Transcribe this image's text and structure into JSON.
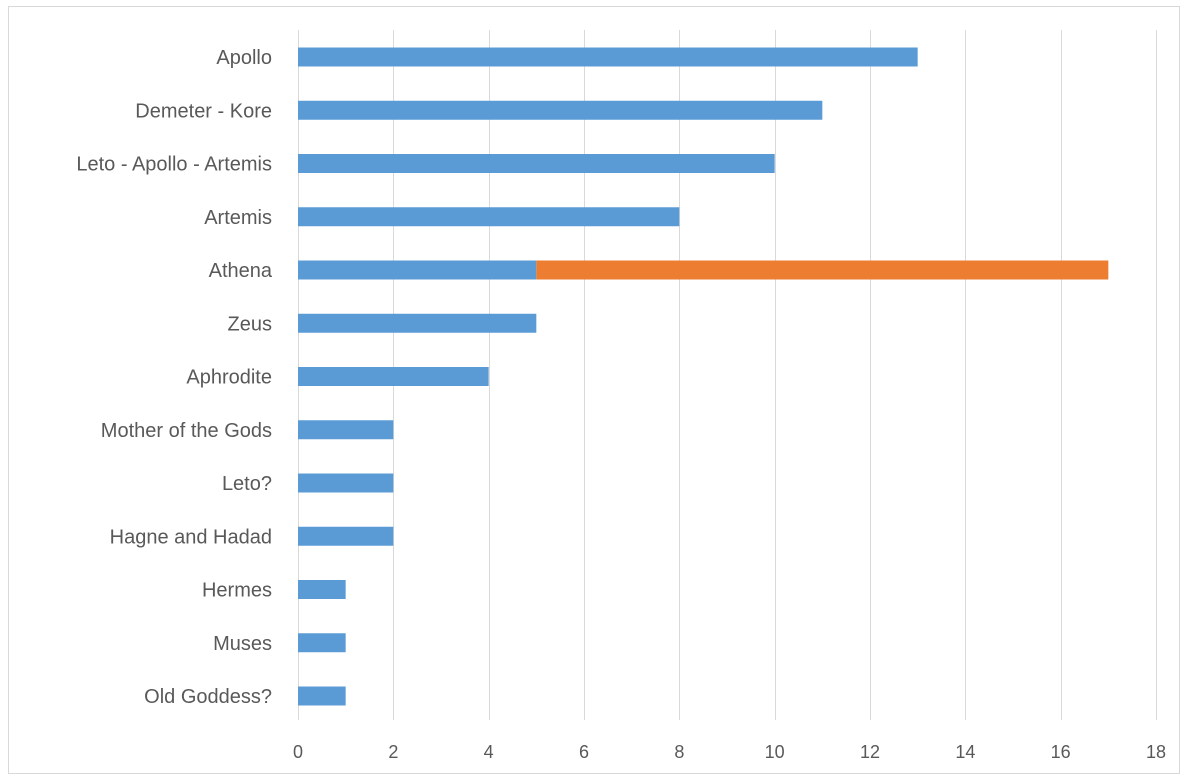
{
  "chart_data": {
    "type": "bar",
    "orientation": "horizontal",
    "stacked": true,
    "categories": [
      "Apollo",
      "Demeter - Kore",
      "Leto - Apollo - Artemis",
      "Artemis",
      "Athena",
      "Zeus",
      "Aphrodite",
      "Mother of the Gods",
      "Leto?",
      "Hagne and Hadad",
      "Hermes",
      "Muses",
      "Old Goddess?"
    ],
    "series": [
      {
        "color": "#5b9bd5",
        "values": [
          13,
          11,
          10,
          8,
          5,
          5,
          4,
          2,
          2,
          2,
          1,
          1,
          1
        ]
      },
      {
        "color": "#ed7d31",
        "values": [
          0,
          0,
          0,
          0,
          12,
          0,
          0,
          0,
          0,
          0,
          0,
          0,
          0
        ]
      }
    ],
    "xlim": [
      0,
      18
    ],
    "xticks": [
      0,
      2,
      4,
      6,
      8,
      10,
      12,
      14,
      16,
      18
    ],
    "title": "",
    "xlabel": "",
    "ylabel": "",
    "grid": true,
    "legend": "none"
  }
}
